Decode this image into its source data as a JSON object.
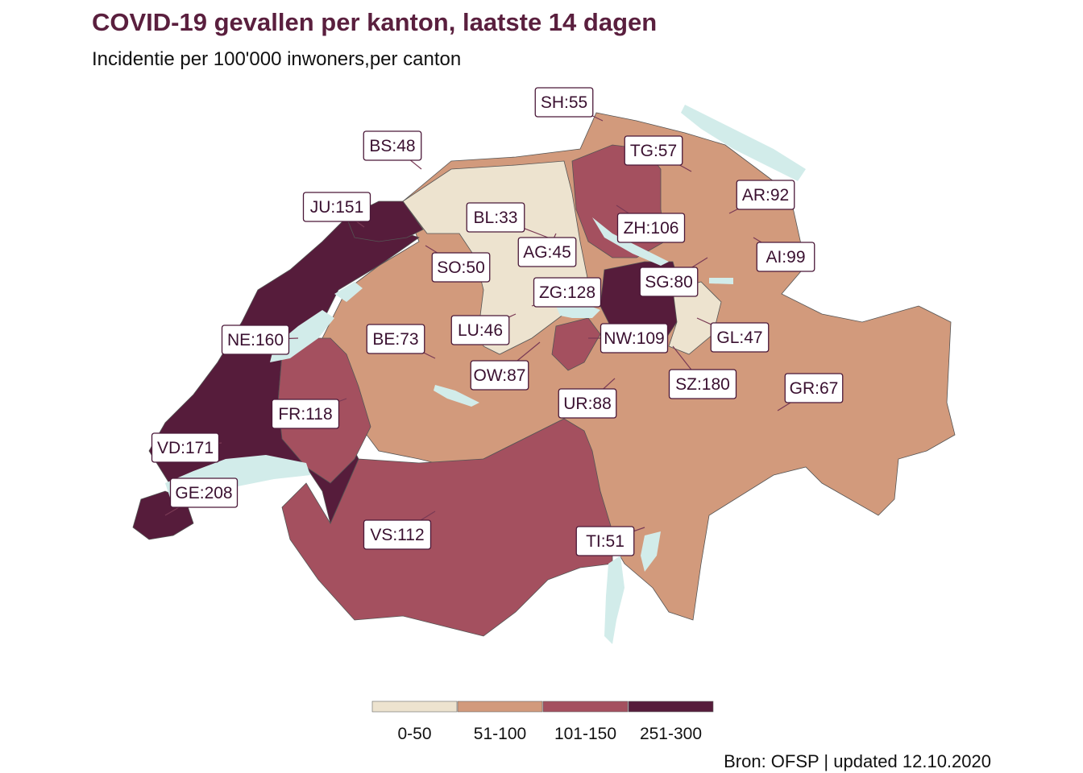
{
  "title": "COVID-19 gevallen per kanton, laatste 14 dagen",
  "subtitle": "Incidentie per 100'000 inwoners,per canton",
  "source": "Bron: OFSP | updated 12.10.2020",
  "colors": {
    "c0_50": "#ede3cf",
    "c51_100": "#d29a7c",
    "c101_150": "#a4505f",
    "c251_300": "#561c3b",
    "lake": "#d2ecea",
    "border": "#555555"
  },
  "legend": [
    {
      "label": "0-50",
      "color_key": "c0_50"
    },
    {
      "label": "51-100",
      "color_key": "c51_100"
    },
    {
      "label": "101-150",
      "color_key": "c101_150"
    },
    {
      "label": "251-300",
      "color_key": "c251_300"
    }
  ],
  "cantons": [
    {
      "code": "SH",
      "value": 55,
      "label": "SH:55"
    },
    {
      "code": "BS",
      "value": 48,
      "label": "BS:48"
    },
    {
      "code": "TG",
      "value": 57,
      "label": "TG:57"
    },
    {
      "code": "JU",
      "value": 151,
      "label": "JU:151"
    },
    {
      "code": "AR",
      "value": 92,
      "label": "AR:92"
    },
    {
      "code": "BL",
      "value": 33,
      "label": "BL:33"
    },
    {
      "code": "ZH",
      "value": 106,
      "label": "ZH:106"
    },
    {
      "code": "AG",
      "value": 45,
      "label": "AG:45"
    },
    {
      "code": "AI",
      "value": 99,
      "label": "AI:99"
    },
    {
      "code": "SO",
      "value": 50,
      "label": "SO:50"
    },
    {
      "code": "SG",
      "value": 80,
      "label": "SG:80"
    },
    {
      "code": "ZG",
      "value": 128,
      "label": "ZG:128"
    },
    {
      "code": "LU",
      "value": 46,
      "label": "LU:46"
    },
    {
      "code": "NE",
      "value": 160,
      "label": "NE:160"
    },
    {
      "code": "BE",
      "value": 73,
      "label": "BE:73"
    },
    {
      "code": "NW",
      "value": 109,
      "label": "NW:109"
    },
    {
      "code": "GL",
      "value": 47,
      "label": "GL:47"
    },
    {
      "code": "OW",
      "value": 87,
      "label": "OW:87"
    },
    {
      "code": "SZ",
      "value": 180,
      "label": "SZ:180"
    },
    {
      "code": "GR",
      "value": 67,
      "label": "GR:67"
    },
    {
      "code": "UR",
      "value": 88,
      "label": "UR:88"
    },
    {
      "code": "FR",
      "value": 118,
      "label": "FR:118"
    },
    {
      "code": "VD",
      "value": 171,
      "label": "VD:171"
    },
    {
      "code": "GE",
      "value": 208,
      "label": "GE:208"
    },
    {
      "code": "VS",
      "value": 112,
      "label": "VS:112"
    },
    {
      "code": "TI",
      "value": 51,
      "label": "TI:51"
    }
  ]
}
